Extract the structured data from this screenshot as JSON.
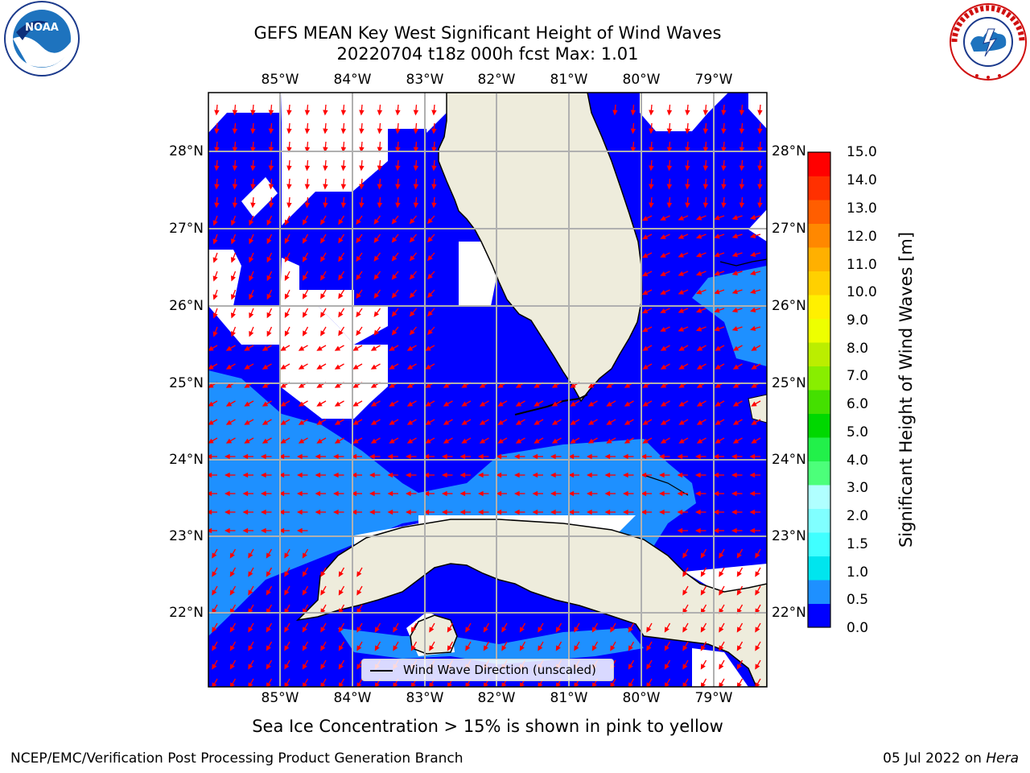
{
  "title": {
    "line1": "GEFS MEAN Key West Significant Height of Wind Waves",
    "line2": "20220704 t18z 000h fcst   Max: 1.01"
  },
  "logos": {
    "left": "noaa-logo",
    "right": "nws-logo"
  },
  "map": {
    "lon_labels": [
      "85°W",
      "84°W",
      "83°W",
      "82°W",
      "81°W",
      "80°W",
      "79°W"
    ],
    "lat_labels": [
      "28°N",
      "27°N",
      "26°N",
      "25°N",
      "24°N",
      "23°N",
      "22°N"
    ],
    "land_color": "#eeecdc",
    "ocean_color_0_to_0_5": "#0000ff",
    "ocean_color_0_5_to_1_0": "#1e90ff",
    "arrow_color": "#ff0000",
    "arrow_direction": "westward to southward"
  },
  "legend": {
    "label": "Wind Wave Direction (unscaled)"
  },
  "colorbar": {
    "label": "Significant Height of Wind Waves [m]",
    "ticks": [
      "15.0",
      "14.0",
      "13.0",
      "12.0",
      "11.0",
      "10.0",
      "9.0",
      "8.0",
      "7.0",
      "6.0",
      "5.0",
      "4.0",
      "3.0",
      "2.0",
      "1.5",
      "1.0",
      "0.5",
      "0.0"
    ],
    "colors": [
      "#0000ff",
      "#1e90ff",
      "#00e5ee",
      "#40ffff",
      "#80ffff",
      "#b0ffff",
      "#4cff7a",
      "#22f04a",
      "#00d800",
      "#44e000",
      "#88ee00",
      "#bbee00",
      "#eeff00",
      "#fff000",
      "#ffd000",
      "#ffb000",
      "#ff8800",
      "#ff5e00",
      "#ff3000",
      "#ff0000"
    ]
  },
  "subcaption": "Sea Ice Concentration > 15% is shown in pink to yellow",
  "footer": {
    "left": "NCEP/EMC/Verification Post Processing Product Generation Branch",
    "right_date": "05 Jul 2022 on ",
    "right_machine": "Hera"
  }
}
